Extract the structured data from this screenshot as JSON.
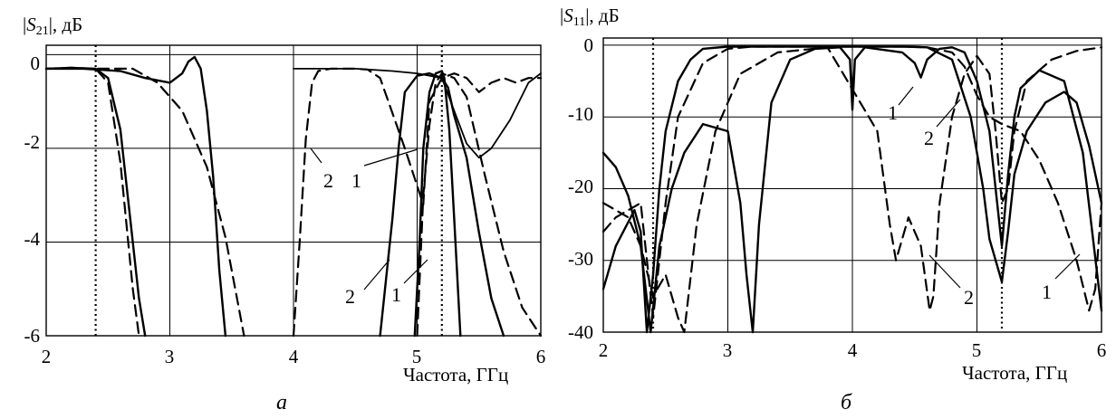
{
  "chart_data": [
    {
      "type": "line",
      "caption": "а",
      "ylabel_prefix": "|",
      "ylabel_var": "S",
      "ylabel_sub": "21",
      "ylabel_suffix": "|, дБ",
      "xlabel": "Частота, ГГц",
      "xlim": [
        2,
        6
      ],
      "ylim": [
        -6,
        0.2
      ],
      "xticks": [
        "2",
        "3",
        "4",
        "5",
        "6"
      ],
      "yticks": [
        "0",
        "-2",
        "-4",
        "-6"
      ],
      "grid": true,
      "marker_lines_x": [
        2.4,
        5.2
      ],
      "curve_labels": [
        "2",
        "1",
        "2",
        "1"
      ],
      "series": [
        {
          "style": "solid",
          "x": [
            2.0,
            2.2,
            2.4,
            2.5,
            2.6,
            2.7,
            2.75,
            2.8
          ],
          "y": [
            -0.3,
            -0.28,
            -0.3,
            -0.5,
            -1.6,
            -4.0,
            -5.2,
            -6.0
          ]
        },
        {
          "style": "dashed",
          "x": [
            2.0,
            2.2,
            2.4,
            2.5,
            2.6,
            2.7,
            2.75
          ],
          "y": [
            -0.3,
            -0.28,
            -0.3,
            -0.6,
            -2.3,
            -5.0,
            -6.0
          ]
        },
        {
          "style": "solid",
          "x": [
            2.0,
            2.3,
            2.6,
            2.8,
            3.0,
            3.1,
            3.15,
            3.2,
            3.25,
            3.3,
            3.35,
            3.4,
            3.45
          ],
          "y": [
            -0.3,
            -0.3,
            -0.35,
            -0.5,
            -0.6,
            -0.4,
            -0.15,
            -0.05,
            -0.3,
            -1.2,
            -2.6,
            -4.6,
            -6.0
          ]
        },
        {
          "style": "dashed",
          "x": [
            2.0,
            2.4,
            2.7,
            2.9,
            3.1,
            3.3,
            3.45,
            3.55,
            3.6
          ],
          "y": [
            -0.3,
            -0.3,
            -0.3,
            -0.6,
            -1.2,
            -2.4,
            -3.9,
            -5.3,
            -6.0
          ]
        },
        {
          "style": "solid",
          "x": [
            4.7,
            4.8,
            4.85,
            4.9,
            5.0,
            5.1,
            5.2,
            5.25,
            5.3,
            5.4,
            5.5,
            5.6,
            5.7
          ],
          "y": [
            -6.0,
            -3.5,
            -2.0,
            -0.8,
            -0.45,
            -0.4,
            -0.5,
            -0.7,
            -1.3,
            -2.2,
            -3.8,
            -5.2,
            -6.0
          ]
        },
        {
          "style": "solid",
          "x": [
            4.98,
            5.02,
            5.05,
            5.1,
            5.15,
            5.2,
            5.22,
            5.26,
            5.3,
            5.35
          ],
          "y": [
            -6.0,
            -4.0,
            -2.0,
            -0.8,
            -0.4,
            -0.35,
            -0.5,
            -1.6,
            -3.5,
            -6.0
          ]
        },
        {
          "style": "dashed",
          "x": [
            4.0,
            4.05,
            4.1,
            4.15,
            4.2,
            4.3,
            4.5,
            4.6,
            4.7,
            4.9,
            5.05,
            5.1,
            5.2,
            5.3,
            5.4,
            5.5,
            5.6,
            5.7,
            5.8,
            5.9,
            6.0
          ],
          "y": [
            -6.0,
            -4.0,
            -1.8,
            -0.6,
            -0.35,
            -0.3,
            -0.3,
            -0.32,
            -0.5,
            -2.0,
            -3.2,
            -1.0,
            -0.5,
            -0.4,
            -0.5,
            -0.8,
            -0.6,
            -0.5,
            -0.6,
            -0.5,
            -0.5
          ]
        },
        {
          "style": "dashed",
          "x": [
            5.0,
            5.05,
            5.1,
            5.15,
            5.2,
            5.3,
            5.4,
            5.55,
            5.7,
            5.85,
            6.0
          ],
          "y": [
            -6.0,
            -3.0,
            -1.5,
            -0.6,
            -0.4,
            -0.5,
            -0.9,
            -2.6,
            -4.2,
            -5.4,
            -6.0
          ]
        },
        {
          "style": "thin",
          "x": [
            4.0,
            4.2,
            4.5,
            4.8,
            5.0,
            5.2,
            5.3,
            5.4,
            5.5,
            5.6,
            5.75,
            5.9,
            6.0
          ],
          "y": [
            -0.3,
            -0.3,
            -0.3,
            -0.35,
            -0.4,
            -0.5,
            -1.2,
            -1.9,
            -2.2,
            -2.0,
            -1.4,
            -0.6,
            -0.4
          ]
        }
      ]
    },
    {
      "type": "line",
      "caption": "б",
      "ylabel_prefix": "|",
      "ylabel_var": "S",
      "ylabel_sub": "11",
      "ylabel_suffix": "|, дБ",
      "xlabel": "Частота, ГГц",
      "xlim": [
        2,
        6
      ],
      "ylim": [
        -40,
        1
      ],
      "xticks": [
        "2",
        "3",
        "4",
        "5",
        "6"
      ],
      "yticks": [
        "0",
        "-10",
        "-20",
        "-30",
        "-40"
      ],
      "grid": true,
      "marker_lines_x": [
        2.4,
        5.2
      ],
      "curve_labels": [
        "1",
        "2",
        "2",
        "1"
      ],
      "series": [
        {
          "style": "solid",
          "x": [
            2.0,
            2.1,
            2.2,
            2.3,
            2.38,
            2.45,
            2.55,
            2.65,
            2.8,
            3.0,
            3.1,
            3.15,
            3.2,
            3.25,
            3.35,
            3.5,
            3.7,
            3.9,
            3.98,
            4.0,
            4.02,
            4.1,
            4.4,
            4.5,
            4.55,
            4.6,
            4.7,
            4.8,
            4.9,
            5.0,
            5.1,
            5.15,
            5.2,
            5.25,
            5.3,
            5.35,
            5.5,
            5.7,
            5.85,
            6.0
          ],
          "y": [
            -15,
            -17,
            -21,
            -28,
            -40,
            -28,
            -20,
            -15,
            -11,
            -12,
            -22,
            -32,
            -40,
            -25,
            -8,
            -2,
            -0.5,
            -0.3,
            -2.0,
            -9.0,
            -2.0,
            -0.3,
            -1.0,
            -2.5,
            -4.5,
            -2.0,
            -0.5,
            -0.3,
            -1.0,
            -5.0,
            -12,
            -20,
            -28,
            -18,
            -10,
            -6,
            -3.5,
            -5,
            -15,
            -37
          ]
        },
        {
          "style": "dashed",
          "x": [
            2.0,
            2.1,
            2.2,
            2.3,
            2.4,
            2.5,
            2.6,
            2.65,
            2.75,
            2.9,
            3.1,
            3.4,
            3.8,
            4.2,
            4.3,
            4.35,
            4.45,
            4.55,
            4.62,
            4.65,
            4.7,
            4.8,
            4.9,
            5.0,
            5.1,
            5.15,
            5.2,
            5.25,
            5.3,
            5.4,
            5.6,
            5.8,
            6.0
          ],
          "y": [
            -22,
            -23,
            -24,
            -28,
            -35,
            -32,
            -38,
            -40,
            -25,
            -12,
            -4,
            -1.0,
            -0.3,
            -12,
            -25,
            -30,
            -24,
            -28,
            -37,
            -35,
            -22,
            -10,
            -4,
            -1.5,
            -4.0,
            -12,
            -22,
            -20,
            -12,
            -5.0,
            -2.0,
            -0.8,
            -0.3
          ]
        },
        {
          "style": "solid",
          "x": [
            2.0,
            2.1,
            2.25,
            2.3,
            2.35,
            2.4,
            2.45,
            2.5,
            2.6,
            2.7,
            2.8,
            3.0,
            3.2,
            3.5,
            3.8,
            4.1,
            4.4,
            4.6,
            4.8,
            4.95,
            5.0,
            5.05,
            5.1,
            5.2,
            5.25,
            5.3,
            5.4,
            5.55,
            5.7,
            5.8,
            5.9,
            6.0
          ],
          "y": [
            -34,
            -28,
            -23,
            -26,
            -40,
            -32,
            -20,
            -12,
            -5,
            -2,
            -0.5,
            -0.2,
            -0.2,
            -0.2,
            -0.2,
            -0.2,
            -0.2,
            -0.3,
            -2.0,
            -10,
            -15,
            -20,
            -27,
            -33,
            -26,
            -18,
            -12,
            -8,
            -6.5,
            -8,
            -14,
            -22
          ]
        },
        {
          "style": "dashed",
          "x": [
            2.0,
            2.1,
            2.3,
            2.4,
            2.5,
            2.6,
            2.8,
            3.0,
            3.2,
            3.5,
            3.8,
            4.2,
            4.4,
            4.6,
            4.8,
            4.9,
            5.0,
            5.1,
            5.2,
            5.35,
            5.5,
            5.65,
            5.8,
            5.9,
            5.95,
            6.0
          ],
          "y": [
            -26,
            -24,
            -22,
            -38,
            -22,
            -10,
            -2.5,
            -0.5,
            -0.2,
            -0.2,
            -0.2,
            -0.2,
            -0.2,
            -0.3,
            -1.0,
            -3.0,
            -7.0,
            -10,
            -11,
            -12,
            -16,
            -22,
            -30,
            -37,
            -34,
            -22
          ]
        }
      ]
    }
  ]
}
